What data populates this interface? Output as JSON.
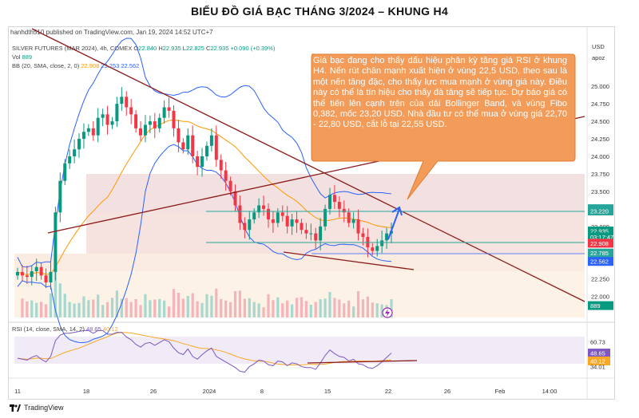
{
  "page_title": "BIỂU ĐỒ GIÁ BẠC THÁNG 3/2024 – KHUNG H4",
  "publish_line": "hanhdth510 published on TradingView.com, Jan 19, 2024 14:52 UTC+7",
  "instrument_line": "SILVER FUTURES (MAR 2024), 4h, COMEX",
  "ohlc": {
    "o_label": "O",
    "o": "22.840",
    "h_label": "H",
    "h": "22.935",
    "l_label": "L",
    "l": "22.825",
    "c_label": "C",
    "c": "22.935",
    "change": "+0.090 (+0.39%)"
  },
  "vol_line": {
    "label": "Vol",
    "value": "889"
  },
  "bb_line": {
    "label": "BB (20, SMA, close, 2, 0)",
    "v1": "22.908",
    "v2": "23.253",
    "v3": "22.562"
  },
  "rsi_line": {
    "label": "RSI (14, close, SMA, 14, 2)",
    "v1": "48.65",
    "v2": "40.12"
  },
  "annotation": "Giá bạc đang cho thấy dấu hiệu phân kỳ tăng giá RSI ở khung H4. Nến rút chân mạnh xuất hiện ở vùng 22,5 USD, theo sau là một nến tăng đặc, cho thấy lực mua mạnh ở vùng giá này. Điều này có thể là tín hiệu cho thấy đà tăng sẽ tiếp tục. Dự báo giá có thể tiến lên cạnh trên của dải Bollinger Band, và vùng Fibo 0,382, mốc 23,20 USD. Nhà đầu tư có thể mua ở vùng giá 22,70 - 22,80 USD, cắt lỗ tại 22,55 USD.",
  "currency_label": "USD",
  "currency_sublabel": "apoz",
  "footer_brand": "TradingView",
  "colors": {
    "up": "#089981",
    "down": "#f23645",
    "bb": "#2962ff",
    "basis": "#ff9800",
    "trendline": "#8b1a1a",
    "callout": "#f39c5a",
    "rsi": "#7e57c2"
  },
  "chart_data": [
    {
      "type": "candlestick",
      "title": "SILVER FUTURES (MAR 2024), 4h, COMEX",
      "y_ticks": [
        "25.000",
        "24.750",
        "24.500",
        "24.250",
        "24.000",
        "23.750",
        "23.500",
        "23.000",
        "22.500",
        "22.250",
        "22.000"
      ],
      "x_ticks": [
        "11",
        "18",
        "26",
        "2024",
        "8",
        "15",
        "22",
        "26",
        "Feb",
        "14:00"
      ],
      "ylim": [
        21.7,
        25.15
      ],
      "price_badges": [
        {
          "label": "23.253",
          "value": 23.253,
          "color": "#26a69a"
        },
        {
          "label": "23.220",
          "value": 23.22,
          "color": "#26a69a"
        },
        {
          "label": "22.935",
          "value": 22.935,
          "color": "#089981"
        },
        {
          "label": "03:17:47",
          "value": 22.85,
          "color": "#089981"
        },
        {
          "label": "22.908",
          "value": 22.76,
          "color": "#f23645"
        },
        {
          "label": "22.785",
          "value": 22.62,
          "color": "#26a69a"
        },
        {
          "label": "22.562",
          "value": 22.5,
          "color": "#2962ff"
        },
        {
          "label": "889",
          "value": 21.87,
          "color": "#089981"
        }
      ],
      "close": [
        22.35,
        22.3,
        22.28,
        22.36,
        22.42,
        22.3,
        22.2,
        22.35,
        23.2,
        23.65,
        23.9,
        24.0,
        24.1,
        24.25,
        24.35,
        24.4,
        24.3,
        24.55,
        24.6,
        24.45,
        24.5,
        24.75,
        24.85,
        24.7,
        24.6,
        24.4,
        24.3,
        24.45,
        24.5,
        24.4,
        24.55,
        24.7,
        24.65,
        24.4,
        24.2,
        24.1,
        24.3,
        24.0,
        23.85,
        24.0,
        24.15,
        24.3,
        23.95,
        23.8,
        23.65,
        23.5,
        23.3,
        23.05,
        22.95,
        23.1,
        23.2,
        23.3,
        23.25,
        23.1,
        23.05,
        23.2,
        23.15,
        23.0,
        23.1,
        23.05,
        22.95,
        22.9,
        22.9,
        22.8,
        23.0,
        23.25,
        23.45,
        23.35,
        23.25,
        23.2,
        23.05,
        23.1,
        22.9,
        22.85,
        22.7,
        22.65,
        22.72,
        22.8,
        22.9,
        22.935
      ]
    },
    {
      "type": "line",
      "title": "RSI (14, close, SMA, 14, 2)",
      "y_ticks": [
        "60.73",
        "48.65",
        "40.12",
        "34.01"
      ],
      "ylim": [
        25,
        75
      ],
      "series": [
        {
          "name": "RSI",
          "values": [
            43,
            42,
            41,
            44,
            46,
            42,
            39,
            45,
            62,
            68,
            70,
            70,
            71,
            72,
            73,
            73,
            70,
            73,
            73,
            69,
            69,
            71,
            71,
            66,
            63,
            58,
            55,
            59,
            60,
            57,
            60,
            63,
            61,
            54,
            49,
            47,
            53,
            45,
            42,
            47,
            51,
            54,
            45,
            42,
            39,
            36,
            33,
            29,
            28,
            34,
            37,
            41,
            40,
            36,
            35,
            40,
            39,
            35,
            38,
            37,
            34,
            33,
            33,
            31,
            38,
            46,
            52,
            48,
            45,
            44,
            40,
            42,
            37,
            36,
            33,
            32,
            35,
            39,
            44,
            48.65
          ]
        }
      ]
    }
  ]
}
